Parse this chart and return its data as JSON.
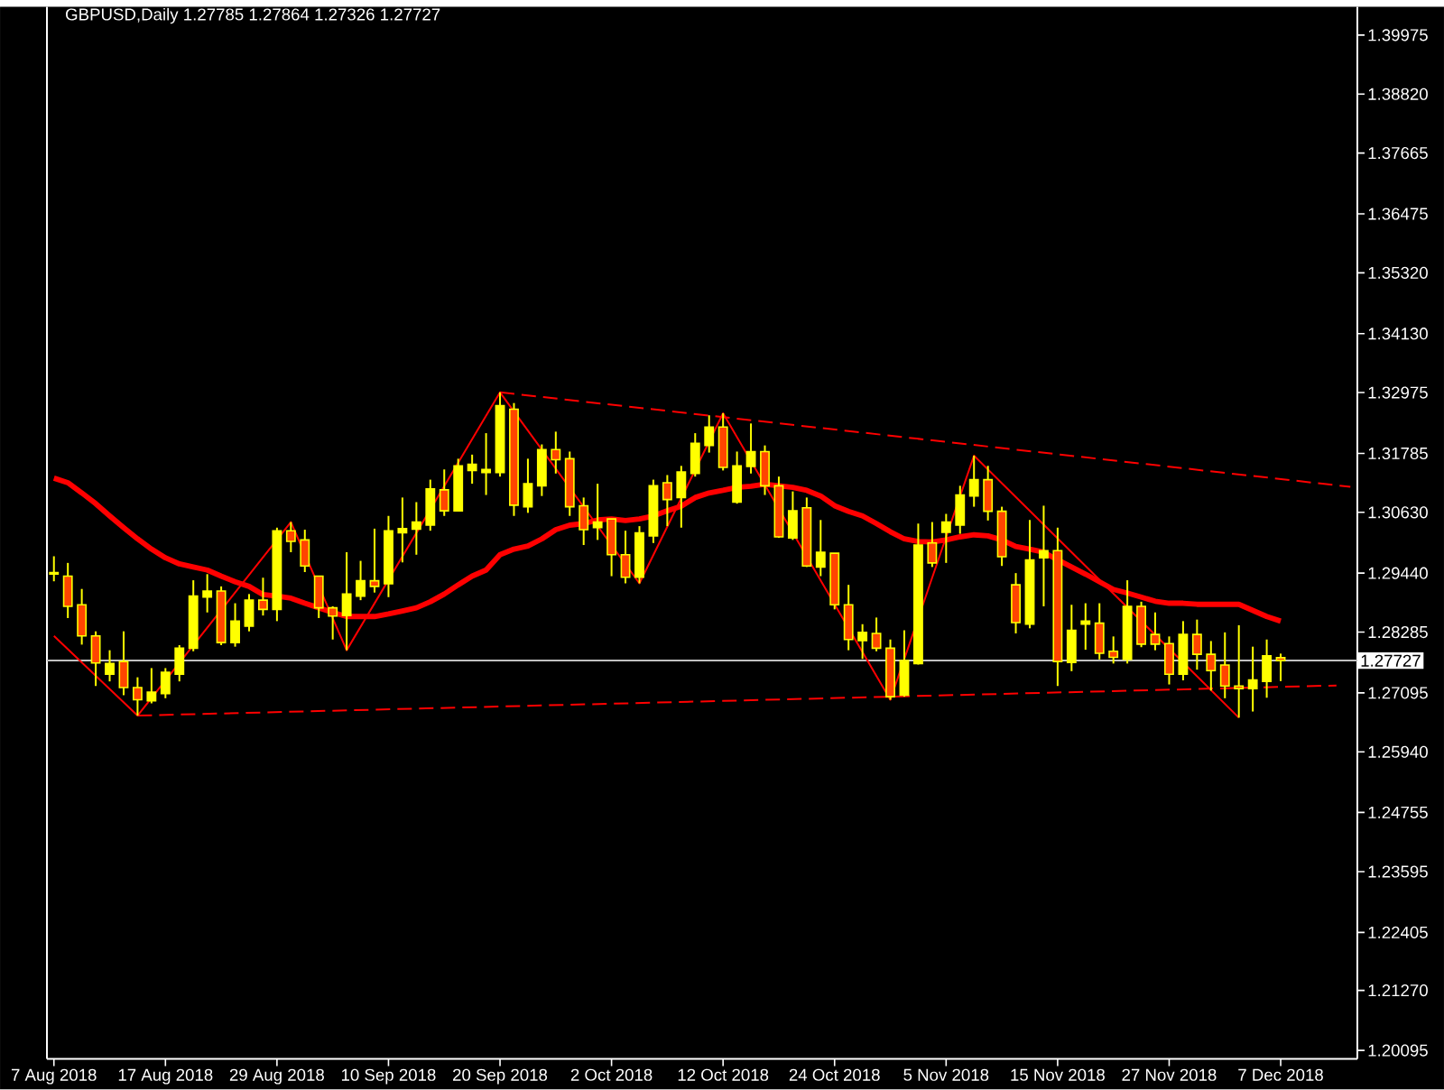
{
  "chart_data": {
    "type": "candlestick",
    "title": "GBPUSD,Daily  1.27785 1.27864 1.27326 1.27727",
    "categories": [
      "7 Aug 2018",
      null,
      null,
      null,
      null,
      null,
      null,
      null,
      "17 Aug 2018",
      null,
      null,
      null,
      null,
      null,
      null,
      null,
      "29 Aug 2018",
      null,
      null,
      null,
      null,
      null,
      null,
      null,
      "10 Sep 2018",
      null,
      null,
      null,
      null,
      null,
      null,
      null,
      "20 Sep 2018",
      null,
      null,
      null,
      null,
      null,
      null,
      null,
      "2 Oct 2018",
      null,
      null,
      null,
      null,
      null,
      null,
      null,
      "12 Oct 2018",
      null,
      null,
      null,
      null,
      null,
      null,
      null,
      "24 Oct 2018",
      null,
      null,
      null,
      null,
      null,
      null,
      null,
      "5 Nov 2018",
      null,
      null,
      null,
      null,
      null,
      null,
      null,
      "15 Nov 2018",
      null,
      null,
      null,
      null,
      null,
      null,
      null,
      "27 Nov 2018",
      null,
      null,
      null,
      null,
      null,
      null,
      null,
      "7 Dec 2018",
      null,
      null,
      null,
      null,
      null
    ],
    "ylim": [
      1.1993,
      1.4053
    ],
    "yticks": [
      1.20095,
      {
        "value": 1.2127,
        "label": "1.21270"
      },
      1.22405,
      1.23595,
      1.24755,
      {
        "value": 1.2594,
        "label": "1.25940"
      },
      1.27095,
      1.28285,
      {
        "value": 1.2944,
        "label": "1.29440"
      },
      {
        "value": 1.3063,
        "label": "1.30630"
      },
      1.31785,
      1.32975,
      {
        "value": 1.3413,
        "label": "1.34130"
      },
      {
        "value": 1.3532,
        "label": "1.35320"
      },
      1.36475,
      1.37665,
      {
        "value": 1.3882,
        "label": "1.38820"
      },
      1.39975
    ],
    "ref_lines": [
      {
        "axis": "y",
        "value": 1.27727,
        "label": "1.27727",
        "color": "#c0c0c0"
      }
    ],
    "series": [
      {
        "color": "#ffff00",
        "ohlc": [
          [
            1.2942,
            1.2977,
            1.2928,
            1.2945
          ],
          [
            1.2938,
            1.2964,
            1.2856,
            1.2879
          ],
          [
            1.2882,
            1.2913,
            1.2804,
            1.2821
          ],
          [
            1.2821,
            1.283,
            1.2723,
            1.2768
          ],
          [
            1.2746,
            1.2793,
            1.2732,
            1.2767
          ],
          [
            1.2771,
            1.283,
            1.2705,
            1.272
          ],
          [
            1.272,
            1.274,
            1.2665,
            1.2696
          ],
          [
            1.2694,
            1.2758,
            1.2689,
            1.2711
          ],
          [
            1.2708,
            1.2758,
            1.2699,
            1.275
          ],
          [
            1.2746,
            1.2803,
            1.2732,
            1.2797
          ],
          [
            1.2797,
            1.293,
            1.2791,
            1.2899
          ],
          [
            1.2897,
            1.2942,
            1.2867,
            1.2909
          ],
          [
            1.2909,
            1.2918,
            1.2803,
            1.2808
          ],
          [
            1.2808,
            1.2885,
            1.28,
            1.285
          ],
          [
            1.284,
            1.2903,
            1.283,
            1.2891
          ],
          [
            1.2891,
            1.2935,
            1.2861,
            1.2873
          ],
          [
            1.2873,
            1.3033,
            1.285,
            1.3027
          ],
          [
            1.3027,
            1.3044,
            1.2985,
            1.3006
          ],
          [
            1.3009,
            1.3029,
            1.2946,
            1.2958
          ],
          [
            1.2938,
            1.2938,
            1.2856,
            1.2876
          ],
          [
            1.2876,
            1.2879,
            1.2814,
            1.286
          ],
          [
            1.2861,
            1.2985,
            1.2793,
            1.2903
          ],
          [
            1.2899,
            1.2968,
            1.2891,
            1.2929
          ],
          [
            1.2929,
            1.3031,
            1.2906,
            1.2918
          ],
          [
            1.2923,
            1.3056,
            1.2897,
            1.3027
          ],
          [
            1.3023,
            1.3092,
            1.2965,
            1.3031
          ],
          [
            1.303,
            1.3083,
            1.298,
            1.3044
          ],
          [
            1.3038,
            1.3127,
            1.3027,
            1.3109
          ],
          [
            1.3107,
            1.3147,
            1.3056,
            1.3066
          ],
          [
            1.3066,
            1.3168,
            1.3066,
            1.3154
          ],
          [
            1.3145,
            1.3176,
            1.3119,
            1.3157
          ],
          [
            1.3141,
            1.3218,
            1.3097,
            1.3147
          ],
          [
            1.3141,
            1.3298,
            1.3133,
            1.3272
          ],
          [
            1.3265,
            1.3277,
            1.3056,
            1.3077
          ],
          [
            1.3074,
            1.3168,
            1.3062,
            1.3119
          ],
          [
            1.3115,
            1.3196,
            1.3095,
            1.3186
          ],
          [
            1.3186,
            1.3221,
            1.3139,
            1.3166
          ],
          [
            1.3168,
            1.3182,
            1.3056,
            1.3074
          ],
          [
            1.3076,
            1.3092,
            1.2999,
            1.3029
          ],
          [
            1.3033,
            1.3119,
            1.3009,
            1.3044
          ],
          [
            1.305,
            1.305,
            1.2938,
            1.298
          ],
          [
            1.298,
            1.3027,
            1.2924,
            1.2936
          ],
          [
            1.2936,
            1.3036,
            1.2924,
            1.3023
          ],
          [
            1.3017,
            1.3127,
            1.3003,
            1.3115
          ],
          [
            1.3121,
            1.3136,
            1.3036,
            1.3088
          ],
          [
            1.3092,
            1.3154,
            1.3033,
            1.3142
          ],
          [
            1.3139,
            1.3218,
            1.3133,
            1.3198
          ],
          [
            1.3194,
            1.3253,
            1.318,
            1.323
          ],
          [
            1.323,
            1.3257,
            1.3145,
            1.3151
          ],
          [
            1.3083,
            1.3182,
            1.308,
            1.3154
          ],
          [
            1.3153,
            1.3237,
            1.3139,
            1.3182
          ],
          [
            1.3182,
            1.3194,
            1.3097,
            1.3115
          ],
          [
            1.3115,
            1.3133,
            1.3013,
            1.3015
          ],
          [
            1.3013,
            1.3104,
            1.3009,
            1.3066
          ],
          [
            1.3072,
            1.3092,
            1.2956,
            1.2958
          ],
          [
            1.2956,
            1.3048,
            1.2938,
            1.2985
          ],
          [
            1.2983,
            1.2983,
            1.2873,
            1.2882
          ],
          [
            1.2882,
            1.2921,
            1.2793,
            1.2814
          ],
          [
            1.2812,
            1.2844,
            1.2776,
            1.2828
          ],
          [
            1.2826,
            1.2857,
            1.2791,
            1.2797
          ],
          [
            1.2797,
            1.2814,
            1.2696,
            1.2702
          ],
          [
            1.2705,
            1.2832,
            1.2702,
            1.2773
          ],
          [
            1.2767,
            1.3041,
            1.2765,
            1.2999
          ],
          [
            1.3003,
            1.3044,
            1.2956,
            1.2964
          ],
          [
            1.3024,
            1.306,
            1.2964,
            1.3044
          ],
          [
            1.3038,
            1.3115,
            1.3021,
            1.3097
          ],
          [
            1.3095,
            1.3174,
            1.3074,
            1.3127
          ],
          [
            1.3127,
            1.3154,
            1.3047,
            1.3065
          ],
          [
            1.3065,
            1.3074,
            1.2958,
            1.2976
          ],
          [
            1.2921,
            1.2944,
            1.2826,
            1.2847
          ],
          [
            1.2844,
            1.3048,
            1.2836,
            1.297
          ],
          [
            1.2974,
            1.3076,
            1.2879,
            1.2988
          ],
          [
            1.2988,
            1.3033,
            1.2723,
            1.2771
          ],
          [
            1.2769,
            1.2882,
            1.2752,
            1.2832
          ],
          [
            1.2844,
            1.2885,
            1.2794,
            1.285
          ],
          [
            1.2846,
            1.2885,
            1.2775,
            1.2787
          ],
          [
            1.2791,
            1.282,
            1.2767,
            1.2779
          ],
          [
            1.2775,
            1.293,
            1.2767,
            1.2879
          ],
          [
            1.2879,
            1.2888,
            1.2799,
            1.2805
          ],
          [
            1.2824,
            1.2867,
            1.2793,
            1.2805
          ],
          [
            1.2806,
            1.282,
            1.2726,
            1.2746
          ],
          [
            1.2746,
            1.285,
            1.2734,
            1.2824
          ],
          [
            1.2824,
            1.2853,
            1.2755,
            1.2785
          ],
          [
            1.2785,
            1.2811,
            1.2714,
            1.2753
          ],
          [
            1.2764,
            1.2828,
            1.2699,
            1.2723
          ],
          [
            1.2723,
            1.2842,
            1.2661,
            1.2718
          ],
          [
            1.2718,
            1.28,
            1.2673,
            1.2735
          ],
          [
            1.2732,
            1.2814,
            1.27,
            1.2782
          ],
          [
            1.27785,
            1.27864,
            1.27326,
            1.27727
          ],
          null,
          null,
          null,
          null,
          null
        ],
        "colors": [
          "#ffff00",
          "#ff4500",
          "#ff4500",
          "#ff4500",
          "#ffff00",
          "#ff4500",
          "#ff4500",
          "#ffff00",
          "#ffff00",
          "#ffff00",
          "#ffff00",
          "#ffff00",
          "#ff4500",
          "#ffff00",
          "#ffff00",
          "#ff4500",
          "#ffff00",
          "#ff4500",
          "#ff4500",
          "#ff4500",
          "#ff4500",
          "#ffff00",
          "#ffff00",
          "#ff4500",
          "#ffff00",
          "#ffff00",
          "#ffff00",
          "#ffff00",
          "#ff4500",
          "#ffff00",
          "#ffff00",
          "#ffff00",
          "#ffff00",
          "#ff4500",
          "#ffff00",
          "#ffff00",
          "#ff4500",
          "#ff4500",
          "#ff4500",
          "#ffff00",
          "#ff4500",
          "#ff4500",
          "#ffff00",
          "#ffff00",
          "#ff4500",
          "#ffff00",
          "#ffff00",
          "#ffff00",
          "#ff4500",
          "#ffff00",
          "#ffff00",
          "#ff4500",
          "#ff4500",
          "#ffff00",
          "#ff4500",
          "#ffff00",
          "#ff4500",
          "#ff4500",
          "#ffff00",
          "#ff4500",
          "#ff4500",
          "#ffff00",
          "#ffff00",
          "#ff4500",
          "#ffff00",
          "#ffff00",
          "#ffff00",
          "#ff4500",
          "#ff4500",
          "#ff4500",
          "#ffff00",
          "#ffff00",
          "#ff4500",
          "#ffff00",
          "#ffff00",
          "#ff4500",
          "#ff4500",
          "#ffff00",
          "#ff4500",
          "#ff4500",
          "#ff4500",
          "#ffff00",
          "#ff4500",
          "#ff4500",
          "#ff4500",
          "#ff4500",
          "#ffff00",
          "#ffff00",
          "#ff4500",
          null,
          null,
          null,
          null,
          null
        ]
      },
      {
        "type": "line",
        "color": "#ff0000",
        "values": [
          1.313,
          1.3121,
          1.3101,
          1.308,
          1.3056,
          1.3033,
          1.3011,
          1.2991,
          1.2974,
          1.2962,
          1.2956,
          1.295,
          1.2938,
          1.2927,
          1.2918,
          1.2902,
          1.2899,
          1.2895,
          1.2885,
          1.2876,
          1.2867,
          1.2859,
          1.2859,
          1.2859,
          1.2864,
          1.287,
          1.2876,
          1.2888,
          1.2903,
          1.2921,
          1.2938,
          1.295,
          1.298,
          1.2991,
          1.2997,
          1.3011,
          1.3029,
          1.3038,
          1.3041,
          1.3048,
          1.305,
          1.3047,
          1.305,
          1.3056,
          1.3066,
          1.3075,
          1.3092,
          1.3101,
          1.3106,
          1.3112,
          1.3114,
          1.3118,
          1.3115,
          1.3112,
          1.3106,
          1.3095,
          1.3076,
          1.3065,
          1.3056,
          1.3041,
          1.3025,
          1.3011,
          1.3006,
          1.3005,
          1.3009,
          1.3015,
          1.3019,
          1.3017,
          1.3009,
          1.2996,
          1.2991,
          1.2985,
          1.297,
          1.2956,
          1.2942,
          1.2927,
          1.2912,
          1.2905,
          1.2897,
          1.2889,
          1.2885,
          1.2885,
          1.2883,
          1.2883,
          1.2883,
          1.2883,
          1.2871,
          1.2859,
          1.285,
          null,
          null,
          null,
          null,
          null
        ]
      },
      {
        "type": "line",
        "color": "#ff0000",
        "line_style": "solid",
        "values": [
          1.2821,
          null,
          null,
          null,
          null,
          null,
          1.2665,
          null,
          null,
          null,
          null,
          null,
          null,
          null,
          null,
          null,
          null,
          1.3044,
          null,
          null,
          null,
          1.2793,
          null,
          null,
          null,
          null,
          null,
          null,
          null,
          null,
          null,
          null,
          1.3298,
          null,
          null,
          null,
          null,
          null,
          null,
          null,
          null,
          null,
          1.2924,
          null,
          null,
          null,
          null,
          null,
          1.3257,
          null,
          null,
          null,
          null,
          null,
          null,
          null,
          null,
          null,
          null,
          null,
          1.2696,
          null,
          null,
          null,
          null,
          null,
          1.3174,
          null,
          null,
          null,
          null,
          null,
          null,
          null,
          null,
          null,
          null,
          null,
          null,
          null,
          null,
          null,
          null,
          null,
          null,
          1.2661,
          null,
          null,
          null,
          null,
          null,
          null,
          null,
          null
        ]
      },
      {
        "type": "line",
        "color": "#ff0000",
        "line_style": "dashed",
        "values": [
          null,
          null,
          null,
          null,
          null,
          null,
          null,
          null,
          null,
          null,
          null,
          null,
          null,
          null,
          null,
          null,
          null,
          null,
          null,
          null,
          null,
          null,
          null,
          null,
          null,
          null,
          null,
          null,
          null,
          null,
          null,
          null,
          1.3298,
          null,
          null,
          null,
          null,
          null,
          null,
          null,
          null,
          null,
          null,
          null,
          null,
          null,
          null,
          null,
          null,
          null,
          null,
          null,
          null,
          null,
          null,
          null,
          null,
          null,
          null,
          null,
          null,
          null,
          null,
          null,
          null,
          null,
          null,
          null,
          null,
          null,
          null,
          null,
          null,
          null,
          null,
          null,
          null,
          null,
          null,
          null,
          null,
          null,
          null,
          null,
          null,
          null,
          null,
          null,
          null,
          null,
          null,
          null,
          null,
          1.3113
        ]
      },
      {
        "type": "line",
        "color": "#ff0000",
        "line_style": "dashed",
        "values": [
          null,
          null,
          null,
          null,
          null,
          null,
          1.2665,
          null,
          null,
          null,
          null,
          null,
          null,
          null,
          null,
          null,
          null,
          null,
          null,
          null,
          null,
          null,
          null,
          null,
          null,
          null,
          null,
          null,
          null,
          null,
          null,
          null,
          null,
          null,
          null,
          null,
          null,
          null,
          null,
          null,
          null,
          null,
          null,
          null,
          null,
          null,
          null,
          null,
          null,
          null,
          null,
          null,
          null,
          null,
          null,
          null,
          null,
          null,
          null,
          null,
          null,
          null,
          null,
          null,
          null,
          null,
          null,
          null,
          null,
          null,
          null,
          null,
          null,
          null,
          null,
          null,
          null,
          null,
          null,
          null,
          null,
          null,
          null,
          null,
          null,
          null,
          null,
          null,
          null,
          null,
          null,
          null,
          1.2724,
          null
        ]
      }
    ]
  }
}
